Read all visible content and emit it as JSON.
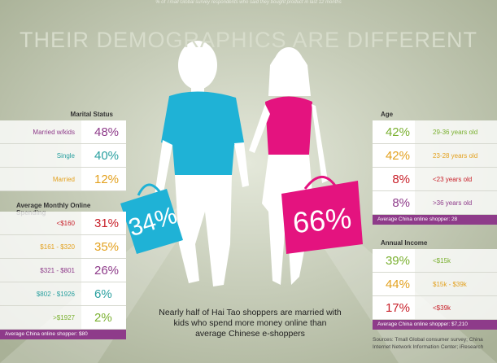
{
  "caption": "% of Tmall Global survey respondents who said they bought product in last 12 months",
  "title": "THEIR DEMOGRAPHICS ARE DIFFERENT",
  "marital": {
    "title": "Marital Status",
    "rows": [
      {
        "label": "Married w/kids",
        "value": "48%",
        "color": "#8e3b8a"
      },
      {
        "label": "Single",
        "value": "40%",
        "color": "#2aa0a0"
      },
      {
        "label": "Married",
        "value": "12%",
        "color": "#e3a11f"
      }
    ]
  },
  "spending": {
    "title": "Average Monthly Online Spending",
    "rows": [
      {
        "label": "<$160",
        "value": "31%",
        "color": "#c8202a"
      },
      {
        "label": "$161 - $320",
        "value": "35%",
        "color": "#e3a11f"
      },
      {
        "label": "$321 - $801",
        "value": "26%",
        "color": "#8e3b8a"
      },
      {
        "label": "$802 - $1926",
        "value": "6%",
        "color": "#2aa0a0"
      },
      {
        "label": ">$1927",
        "value": "2%",
        "color": "#7ab030"
      }
    ],
    "footer": "Average China online shopper: $80"
  },
  "age": {
    "title": "Age",
    "rows": [
      {
        "label": "29-36 years old",
        "value": "42%",
        "color": "#7ab030"
      },
      {
        "label": "23-28 years old",
        "value": "42%",
        "color": "#e3a11f"
      },
      {
        "label": "<23 years old",
        "value": "8%",
        "color": "#c8202a"
      },
      {
        "label": ">36 years old",
        "value": "8%",
        "color": "#8e3b8a"
      }
    ],
    "footer": "Average China online shopper: 28"
  },
  "income": {
    "title": "Annual Income",
    "rows": [
      {
        "label": "<$15k",
        "value": "39%",
        "color": "#7ab030"
      },
      {
        "label": "$15k - $39k",
        "value": "44%",
        "color": "#e3a11f"
      },
      {
        "label": "<$39k",
        "value": "17%",
        "color": "#c8202a"
      }
    ],
    "footer": "Average China online shopper: $7,210"
  },
  "bags": {
    "left": "34%",
    "right": "66%"
  },
  "note": "Nearly half of Hai Tao shoppers are married with kids who spend more money online than average Chinese e-shoppers",
  "sources": "Sources: Tmall Global consumer survey; China Internet Network Information Center; iResearch"
}
